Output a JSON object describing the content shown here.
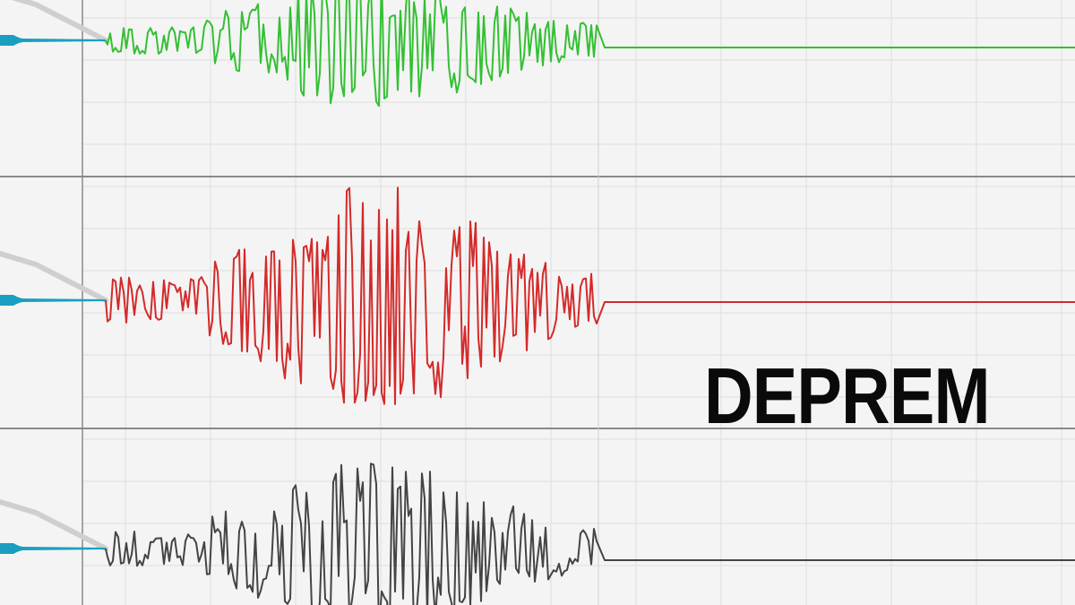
{
  "title": "DEPREM",
  "colors": {
    "background": "#f4f4f4",
    "grid": "#dedede",
    "divider": "#8a8a8a",
    "pen": "#1a9fc0",
    "arm": "#cfcfcf",
    "traces": [
      "#33c033",
      "#d42a2a",
      "#444444"
    ]
  },
  "panels": [
    {
      "trace": "green"
    },
    {
      "trace": "red"
    },
    {
      "trace": "black"
    }
  ]
}
